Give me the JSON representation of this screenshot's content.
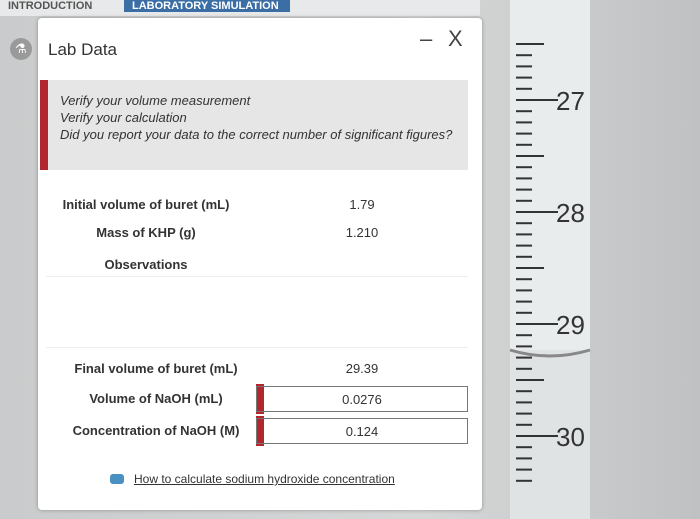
{
  "tabs": [
    "INTRODUCTION",
    "LABORATORY SIMULATION"
  ],
  "panel": {
    "title": "Lab Data",
    "minimize": "–",
    "close": "X"
  },
  "feedback": [
    "Verify your volume measurement",
    "Verify your calculation",
    "Did you report your data to the correct number of significant figures?"
  ],
  "table": {
    "rows": [
      {
        "label": "Initial volume of buret (mL)",
        "value": "1.79"
      },
      {
        "label": "Mass of KHP (g)",
        "value": "1.210"
      },
      {
        "label": "Observations"
      },
      {
        "label": "Final volume of buret (mL)",
        "value": "29.39"
      },
      {
        "label": "Volume of NaOH (mL)",
        "value": "0.0276",
        "flagged": true
      },
      {
        "label": "Concentration of NaOH (M)",
        "value": "0.124",
        "flagged": true
      }
    ]
  },
  "link": "How to calculate sodium hydroxide concentration",
  "buret": {
    "labels": [
      "27",
      "28",
      "29",
      "30"
    ]
  }
}
